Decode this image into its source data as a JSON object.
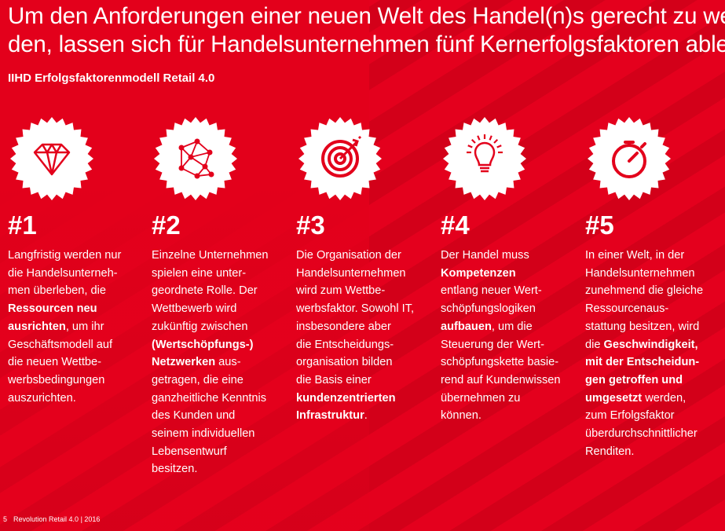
{
  "header": {
    "title": [
      "Um den Anforderungen einer neuen Welt des Handel(n)s gerecht zu wer-",
      "den, lassen sich für Handelsunternehmen fünf Kernerfolgsfaktoren ableiten"
    ],
    "subtitle": "IIHD Erfolgsfaktorenmodell Retail 4.0"
  },
  "factors": [
    {
      "number": "#1",
      "lines": [
        [
          {
            "text": "Langfristig werden nur"
          }
        ],
        [
          {
            "text": "die Handelsunterneh-"
          }
        ],
        [
          {
            "text": "men überleben, die"
          }
        ],
        [
          {
            "text": "Ressourcen neu",
            "bold": true
          }
        ],
        [
          {
            "text": "ausrichten",
            "bold": true
          },
          {
            "text": ", um ihr"
          }
        ],
        [
          {
            "text": "Geschäftsmodell auf"
          }
        ],
        [
          {
            "text": "die neuen Wettbe-"
          }
        ],
        [
          {
            "text": "werbsbedingungen"
          }
        ],
        [
          {
            "text": "auszurichten."
          }
        ]
      ]
    },
    {
      "number": "#2",
      "lines": [
        [
          {
            "text": "Einzelne Unternehmen"
          }
        ],
        [
          {
            "text": "spielen eine unter-"
          }
        ],
        [
          {
            "text": "geordnete Rolle. Der"
          }
        ],
        [
          {
            "text": "Wettbewerb wird"
          }
        ],
        [
          {
            "text": "zukünftig zwischen"
          }
        ],
        [
          {
            "text": "(Wertschöpfungs-)",
            "bold": true
          }
        ],
        [
          {
            "text": "Netzwerken",
            "bold": true
          },
          {
            "text": " aus-"
          }
        ],
        [
          {
            "text": "getragen, die eine"
          }
        ],
        [
          {
            "text": "ganzheitliche Kenntnis"
          }
        ],
        [
          {
            "text": "des Kunden und"
          }
        ],
        [
          {
            "text": "seinem individuellen"
          }
        ],
        [
          {
            "text": "Lebensentwurf"
          }
        ],
        [
          {
            "text": "besitzen."
          }
        ]
      ]
    },
    {
      "number": "#3",
      "lines": [
        [
          {
            "text": "Die Organisation der"
          }
        ],
        [
          {
            "text": "Handelsunternehmen"
          }
        ],
        [
          {
            "text": "wird zum Wettbe-"
          }
        ],
        [
          {
            "text": "werbsfaktor. Sowohl IT,"
          }
        ],
        [
          {
            "text": "insbesondere aber"
          }
        ],
        [
          {
            "text": "die Entscheidungs-"
          }
        ],
        [
          {
            "text": "organisation bilden"
          }
        ],
        [
          {
            "text": "die Basis einer"
          }
        ],
        [
          {
            "text": "kundenzentrierten",
            "bold": true
          }
        ],
        [
          {
            "text": "Infrastruktur",
            "bold": true
          },
          {
            "text": "."
          }
        ]
      ]
    },
    {
      "number": "#4",
      "lines": [
        [
          {
            "text": "Der Handel muss"
          }
        ],
        [
          {
            "text": "Kompetenzen",
            "bold": true
          }
        ],
        [
          {
            "text": "entlang neuer Wert-"
          }
        ],
        [
          {
            "text": "schöpfungslogiken"
          }
        ],
        [
          {
            "text": "aufbauen",
            "bold": true
          },
          {
            "text": ", um die"
          }
        ],
        [
          {
            "text": "Steuerung der Wert-"
          }
        ],
        [
          {
            "text": "schöpfungskette basie-"
          }
        ],
        [
          {
            "text": "rend auf Kundenwissen"
          }
        ],
        [
          {
            "text": "übernehmen zu"
          }
        ],
        [
          {
            "text": "können."
          }
        ]
      ]
    },
    {
      "number": "#5",
      "lines": [
        [
          {
            "text": "In einer Welt, in der"
          }
        ],
        [
          {
            "text": "Handelsunternehmen"
          }
        ],
        [
          {
            "text": "zunehmend die gleiche"
          }
        ],
        [
          {
            "text": "Ressourcenaus-"
          }
        ],
        [
          {
            "text": "stattung besitzen, wird"
          }
        ],
        [
          {
            "text": "die "
          },
          {
            "text": "Geschwindigkeit,",
            "bold": true
          }
        ],
        [
          {
            "text": "mit der Entscheidun-",
            "bold": true
          }
        ],
        [
          {
            "text": "gen getroffen und",
            "bold": true
          }
        ],
        [
          {
            "text": "umgesetzt",
            "bold": true
          },
          {
            "text": " werden,"
          }
        ],
        [
          {
            "text": "zum Erfolgsfaktor"
          }
        ],
        [
          {
            "text": "überdurchschnittlicher"
          }
        ],
        [
          {
            "text": "Renditen."
          }
        ]
      ]
    }
  ],
  "footer": {
    "page": "5",
    "text": "Revolution Retail 4.0 | 2016"
  }
}
